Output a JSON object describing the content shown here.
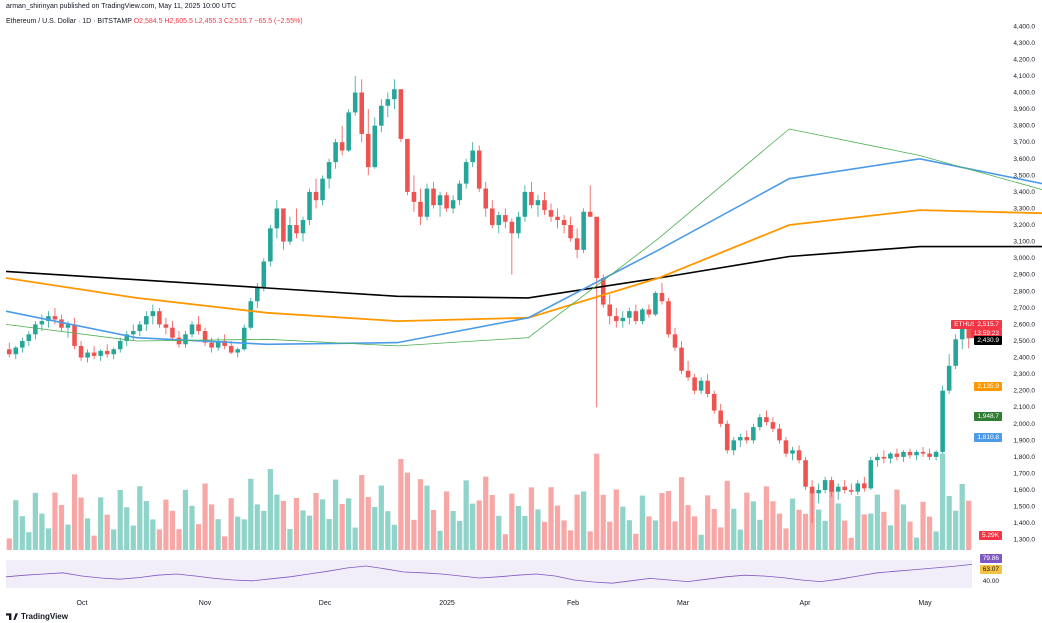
{
  "header": {
    "published": "arman_shirinyan published on TradingView.com, May 11, 2025 10:00 UTC",
    "symbol": "Ethereum / U.S. Dollar · 1D · BITSTAMP",
    "ohlc": "O2,584.5 H2,605.5 L2,455.3 C2,515.7 −65.5 (−2.55%)"
  },
  "logo_text": "TradingView",
  "colors": {
    "up": "#26a69a",
    "down": "#ef5350",
    "ma_black": "#000000",
    "ma_orange": "#ff9800",
    "ma_blue": "#4c9be8",
    "ma_green": "#4caf50",
    "rsi": "#7e57c2",
    "rsi_ma": "#f5c242"
  },
  "tags": {
    "symbol": "ETHUSD",
    "price": "2,515.7",
    "countdown": "13:59:23",
    "ma200": "2,430.9",
    "ma100": "2,135.9",
    "ma20": "1,948.7",
    "ma50": "1,810.8",
    "volume": "5.29K",
    "rsi": "79.86",
    "rsi_ma": "63.07",
    "rsi_40": "40.00"
  },
  "chart_data": {
    "type": "candlestick",
    "title": "Ethereum / U.S. Dollar · 1D · BITSTAMP",
    "x_labels": [
      "Oct",
      "Nov",
      "Dec",
      "2025",
      "Feb",
      "Mar",
      "Apr",
      "May"
    ],
    "y_ticks": [
      "1,300.0",
      "1,400.0",
      "1,500.0",
      "1,600.0",
      "1,700.0",
      "1,800.0",
      "1,900.0",
      "2,000.0",
      "2,100.0",
      "2,200.0",
      "2,300.0",
      "2,400.0",
      "2,500.0",
      "2,600.0",
      "2,700.0",
      "2,800.0",
      "2,900.0",
      "3,000.0",
      "3,100.0",
      "3,200.0",
      "3,300.0",
      "3,400.0",
      "3,500.0",
      "3,600.0",
      "3,700.0",
      "3,800.0",
      "3,900.0",
      "4,000.0",
      "4,100.0",
      "4,200.0",
      "4,300.0",
      "4,400.0"
    ],
    "ylim": [
      1250,
      4450
    ],
    "candles_ohlc": [
      [
        2450,
        2490,
        2400,
        2420
      ],
      [
        2420,
        2470,
        2390,
        2460
      ],
      [
        2460,
        2520,
        2430,
        2500
      ],
      [
        2500,
        2560,
        2470,
        2540
      ],
      [
        2540,
        2620,
        2510,
        2600
      ],
      [
        2600,
        2660,
        2560,
        2620
      ],
      [
        2620,
        2680,
        2580,
        2650
      ],
      [
        2650,
        2700,
        2600,
        2630
      ],
      [
        2630,
        2660,
        2560,
        2580
      ],
      [
        2580,
        2620,
        2520,
        2600
      ],
      [
        2600,
        2640,
        2450,
        2470
      ],
      [
        2470,
        2500,
        2380,
        2400
      ],
      [
        2400,
        2450,
        2370,
        2430
      ],
      [
        2430,
        2470,
        2390,
        2410
      ],
      [
        2410,
        2450,
        2380,
        2440
      ],
      [
        2440,
        2480,
        2400,
        2420
      ],
      [
        2420,
        2460,
        2390,
        2450
      ],
      [
        2450,
        2520,
        2430,
        2500
      ],
      [
        2500,
        2560,
        2470,
        2540
      ],
      [
        2540,
        2600,
        2500,
        2560
      ],
      [
        2560,
        2620,
        2530,
        2600
      ],
      [
        2600,
        2680,
        2560,
        2650
      ],
      [
        2650,
        2720,
        2600,
        2680
      ],
      [
        2680,
        2700,
        2580,
        2600
      ],
      [
        2600,
        2640,
        2540,
        2580
      ],
      [
        2580,
        2620,
        2500,
        2520
      ],
      [
        2520,
        2560,
        2460,
        2480
      ],
      [
        2480,
        2560,
        2460,
        2540
      ],
      [
        2540,
        2620,
        2520,
        2600
      ],
      [
        2600,
        2650,
        2540,
        2560
      ],
      [
        2560,
        2580,
        2470,
        2490
      ],
      [
        2490,
        2520,
        2430,
        2460
      ],
      [
        2460,
        2520,
        2440,
        2500
      ],
      [
        2500,
        2540,
        2450,
        2470
      ],
      [
        2470,
        2500,
        2420,
        2430
      ],
      [
        2430,
        2460,
        2400,
        2450
      ],
      [
        2450,
        2600,
        2440,
        2580
      ],
      [
        2580,
        2760,
        2570,
        2740
      ],
      [
        2740,
        2850,
        2700,
        2820
      ],
      [
        2820,
        3000,
        2800,
        2980
      ],
      [
        2980,
        3200,
        2950,
        3180
      ],
      [
        3180,
        3350,
        3120,
        3300
      ],
      [
        3300,
        3280,
        3050,
        3100
      ],
      [
        3100,
        3250,
        3080,
        3200
      ],
      [
        3200,
        3300,
        3120,
        3150
      ],
      [
        3150,
        3250,
        3100,
        3230
      ],
      [
        3230,
        3420,
        3200,
        3400
      ],
      [
        3400,
        3480,
        3300,
        3350
      ],
      [
        3350,
        3500,
        3320,
        3480
      ],
      [
        3480,
        3600,
        3420,
        3580
      ],
      [
        3580,
        3720,
        3540,
        3700
      ],
      [
        3700,
        3800,
        3620,
        3650
      ],
      [
        3650,
        3900,
        3640,
        3880
      ],
      [
        3880,
        4100,
        3860,
        4000
      ],
      [
        4000,
        4080,
        3700,
        3750
      ],
      [
        3750,
        3900,
        3500,
        3550
      ],
      [
        3550,
        3850,
        3540,
        3800
      ],
      [
        3800,
        3960,
        3760,
        3920
      ],
      [
        3920,
        4000,
        3850,
        3960
      ],
      [
        3960,
        4080,
        3900,
        4020
      ],
      [
        4020,
        4000,
        3700,
        3720
      ],
      [
        3720,
        3700,
        3380,
        3400
      ],
      [
        3400,
        3500,
        3280,
        3340
      ],
      [
        3340,
        3420,
        3200,
        3250
      ],
      [
        3250,
        3450,
        3230,
        3420
      ],
      [
        3420,
        3460,
        3300,
        3320
      ],
      [
        3320,
        3400,
        3250,
        3380
      ],
      [
        3380,
        3400,
        3280,
        3300
      ],
      [
        3300,
        3380,
        3270,
        3350
      ],
      [
        3350,
        3470,
        3320,
        3450
      ],
      [
        3450,
        3600,
        3420,
        3580
      ],
      [
        3580,
        3700,
        3550,
        3650
      ],
      [
        3650,
        3680,
        3400,
        3420
      ],
      [
        3420,
        3460,
        3250,
        3300
      ],
      [
        3300,
        3350,
        3180,
        3200
      ],
      [
        3200,
        3280,
        3150,
        3260
      ],
      [
        3260,
        3300,
        3180,
        3220
      ],
      [
        3220,
        3240,
        2900,
        3150
      ],
      [
        3150,
        3280,
        3120,
        3250
      ],
      [
        3250,
        3440,
        3220,
        3400
      ],
      [
        3400,
        3460,
        3300,
        3320
      ],
      [
        3320,
        3380,
        3250,
        3350
      ],
      [
        3350,
        3400,
        3260,
        3290
      ],
      [
        3290,
        3330,
        3220,
        3250
      ],
      [
        3250,
        3300,
        3180,
        3230
      ],
      [
        3230,
        3260,
        3150,
        3200
      ],
      [
        3200,
        3250,
        3100,
        3120
      ],
      [
        3120,
        3180,
        3000,
        3050
      ],
      [
        3050,
        3300,
        3030,
        3280
      ],
      [
        3280,
        3440,
        3250,
        3250
      ],
      [
        3250,
        3200,
        2100,
        2880
      ],
      [
        2880,
        2900,
        2700,
        2720
      ],
      [
        2720,
        2780,
        2600,
        2650
      ],
      [
        2650,
        2700,
        2580,
        2620
      ],
      [
        2620,
        2680,
        2580,
        2640
      ],
      [
        2640,
        2700,
        2600,
        2680
      ],
      [
        2680,
        2720,
        2600,
        2620
      ],
      [
        2620,
        2700,
        2600,
        2690
      ],
      [
        2690,
        2720,
        2640,
        2660
      ],
      [
        2660,
        2800,
        2650,
        2790
      ],
      [
        2790,
        2850,
        2720,
        2740
      ],
      [
        2740,
        2760,
        2520,
        2540
      ],
      [
        2540,
        2580,
        2440,
        2460
      ],
      [
        2460,
        2500,
        2300,
        2320
      ],
      [
        2320,
        2380,
        2260,
        2280
      ],
      [
        2280,
        2300,
        2180,
        2200
      ],
      [
        2200,
        2280,
        2180,
        2260
      ],
      [
        2260,
        2300,
        2160,
        2180
      ],
      [
        2180,
        2200,
        2060,
        2080
      ],
      [
        2080,
        2120,
        1980,
        2000
      ],
      [
        2000,
        2020,
        1820,
        1840
      ],
      [
        1840,
        1920,
        1810,
        1900
      ],
      [
        1900,
        1940,
        1860,
        1920
      ],
      [
        1920,
        1960,
        1880,
        1900
      ],
      [
        1900,
        2000,
        1880,
        1980
      ],
      [
        1980,
        2060,
        1960,
        2040
      ],
      [
        2040,
        2080,
        1990,
        2010
      ],
      [
        2010,
        2040,
        1950,
        1970
      ],
      [
        1970,
        2000,
        1880,
        1900
      ],
      [
        1900,
        1920,
        1800,
        1820
      ],
      [
        1820,
        1860,
        1780,
        1840
      ],
      [
        1840,
        1870,
        1760,
        1780
      ],
      [
        1780,
        1800,
        1600,
        1620
      ],
      [
        1620,
        1660,
        1400,
        1580
      ],
      [
        1580,
        1640,
        1520,
        1600
      ],
      [
        1600,
        1680,
        1580,
        1660
      ],
      [
        1660,
        1680,
        1560,
        1590
      ],
      [
        1590,
        1640,
        1540,
        1620
      ],
      [
        1620,
        1660,
        1580,
        1600
      ],
      [
        1600,
        1640,
        1570,
        1590
      ],
      [
        1590,
        1660,
        1570,
        1640
      ],
      [
        1640,
        1680,
        1590,
        1610
      ],
      [
        1610,
        1800,
        1600,
        1780
      ],
      [
        1780,
        1820,
        1740,
        1800
      ],
      [
        1800,
        1840,
        1760,
        1790
      ],
      [
        1790,
        1830,
        1760,
        1820
      ],
      [
        1820,
        1850,
        1780,
        1800
      ],
      [
        1800,
        1840,
        1770,
        1830
      ],
      [
        1830,
        1850,
        1790,
        1810
      ],
      [
        1810,
        1840,
        1780,
        1830
      ],
      [
        1830,
        1860,
        1800,
        1820
      ],
      [
        1820,
        1850,
        1780,
        1800
      ],
      [
        1800,
        1840,
        1780,
        1830
      ],
      [
        1830,
        2230,
        1820,
        2200
      ],
      [
        2200,
        2420,
        2180,
        2350
      ],
      [
        2350,
        2540,
        2330,
        2510
      ],
      [
        2510,
        2600,
        2450,
        2585
      ],
      [
        2585,
        2606,
        2455,
        2516
      ]
    ],
    "overlays": [
      {
        "name": "ma_black",
        "points": [
          [
            0,
            2920
          ],
          [
            20,
            2870
          ],
          [
            40,
            2820
          ],
          [
            60,
            2770
          ],
          [
            80,
            2760
          ],
          [
            100,
            2880
          ],
          [
            120,
            3010
          ],
          [
            140,
            3070
          ],
          [
            160,
            3070
          ],
          [
            180,
            3020
          ],
          [
            200,
            2920
          ],
          [
            220,
            2760
          ],
          [
            240,
            2580
          ],
          [
            260,
            2450
          ],
          [
            268,
            2431
          ]
        ]
      },
      {
        "name": "ma_orange",
        "points": [
          [
            0,
            2880
          ],
          [
            20,
            2760
          ],
          [
            40,
            2670
          ],
          [
            60,
            2620
          ],
          [
            80,
            2640
          ],
          [
            100,
            2880
          ],
          [
            120,
            3200
          ],
          [
            140,
            3290
          ],
          [
            160,
            3270
          ],
          [
            180,
            3230
          ],
          [
            200,
            3020
          ],
          [
            220,
            2780
          ],
          [
            240,
            2450
          ],
          [
            260,
            2130
          ],
          [
            268,
            2136
          ]
        ]
      },
      {
        "name": "ma_blue",
        "points": [
          [
            0,
            2680
          ],
          [
            20,
            2520
          ],
          [
            40,
            2480
          ],
          [
            60,
            2490
          ],
          [
            80,
            2640
          ],
          [
            100,
            3050
          ],
          [
            120,
            3480
          ],
          [
            140,
            3600
          ],
          [
            160,
            3440
          ],
          [
            180,
            3220
          ],
          [
            200,
            2980
          ],
          [
            220,
            2620
          ],
          [
            240,
            2200
          ],
          [
            260,
            1870
          ],
          [
            268,
            1811
          ]
        ]
      },
      {
        "name": "ma_green",
        "points": [
          [
            0,
            2600
          ],
          [
            20,
            2500
          ],
          [
            40,
            2510
          ],
          [
            60,
            2470
          ],
          [
            80,
            2520
          ],
          [
            100,
            3120
          ],
          [
            120,
            3780
          ],
          [
            140,
            3620
          ],
          [
            160,
            3400
          ],
          [
            180,
            3200
          ],
          [
            200,
            2780
          ],
          [
            220,
            2330
          ],
          [
            240,
            1940
          ],
          [
            260,
            1780
          ],
          [
            268,
            1949
          ]
        ]
      }
    ],
    "rsi_ticks": [
      "40.00",
      "63.07",
      "79.86"
    ],
    "rsi": [
      48,
      52,
      55,
      58,
      50,
      45,
      42,
      46,
      52,
      55,
      50,
      44,
      40,
      38,
      43,
      48,
      55,
      62,
      70,
      75,
      68,
      60,
      58,
      55,
      50,
      45,
      48,
      52,
      55,
      50,
      40,
      35,
      32,
      38,
      44,
      40,
      36,
      42,
      48,
      52,
      50,
      46,
      40,
      36,
      42,
      50,
      58,
      62,
      66,
      70,
      74,
      79
    ]
  }
}
